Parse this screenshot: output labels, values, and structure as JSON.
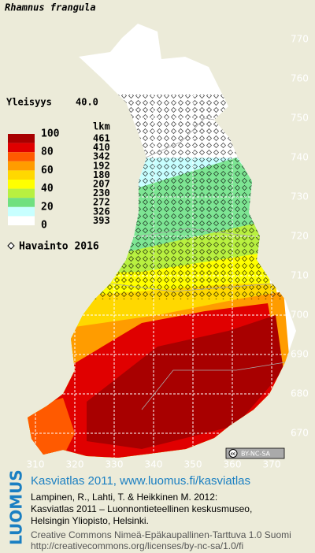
{
  "header": {
    "title": "Rhamnus frangula",
    "frequency_label": "Yleisyys",
    "frequency": "40.0"
  },
  "legend": {
    "count_title": "lkm",
    "levels": [
      100,
      80,
      60,
      40,
      20,
      0
    ],
    "classes": [
      {
        "color": "#a80000",
        "count": 461
      },
      {
        "color": "#e00000",
        "count": 410
      },
      {
        "color": "#ff5a00",
        "count": 342
      },
      {
        "color": "#ff9c00",
        "count": 192
      },
      {
        "color": "#ffd800",
        "count": 180
      },
      {
        "color": "#ffff00",
        "count": 207
      },
      {
        "color": "#b8f040",
        "count": 230
      },
      {
        "color": "#70e080",
        "count": 272
      },
      {
        "color": "#c8ffff",
        "count": 326
      },
      {
        "color": "#ffffff",
        "count": 393
      }
    ],
    "observation_label": "Havainto 2016"
  },
  "map": {
    "xticks": [
      310,
      320,
      330,
      340,
      350,
      360,
      370
    ],
    "yticks": [
      670,
      680,
      690,
      700,
      710,
      720,
      730,
      740,
      750,
      760,
      770
    ],
    "grid": true
  },
  "license_badge": "BY-NC-SA",
  "footer": {
    "brand": "LUOMUS",
    "link": "Kasviatlas 2011, www.luomus.fi/kasviatlas",
    "citation": [
      "Lampinen, R., Lahti, T. & Heikkinen M. 2012:",
      "Kasviatlas 2011 – Luonnontieteellinen keskusmuseo,",
      "Helsingin Yliopisto, Helsinki."
    ],
    "license": [
      "Creative Commons Nimeä-Epäkaupallinen-Tarttuva 1.0 Suomi",
      "http://creativecommons.org/licenses/by-nc-sa/1.0/fi"
    ]
  }
}
